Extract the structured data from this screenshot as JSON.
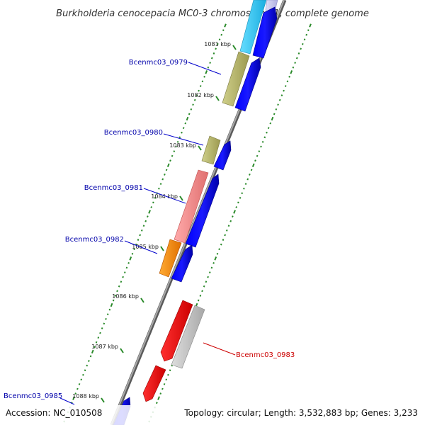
{
  "title": "Burkholderia cenocepacia MC0-3 chromosome 1, complete genome",
  "accession": "Accession: NC_010508",
  "summary": "Topology: circular; Length: 3,532,883 bp; Genes: 3,233",
  "ticks": [
    "1081 kbp",
    "1082 kbp",
    "1083 kbp",
    "1084 kbp",
    "1085 kbp",
    "1086 kbp",
    "1087 kbp",
    "1088 kbp"
  ],
  "gene_labels": [
    {
      "name": "Bcenmc03_0979",
      "color": "#0000aa"
    },
    {
      "name": "Bcenmc03_0980",
      "color": "#0000aa"
    },
    {
      "name": "Bcenmc03_0981",
      "color": "#0000aa"
    },
    {
      "name": "Bcenmc03_0982",
      "color": "#0000aa"
    },
    {
      "name": "Bcenmc03_0983",
      "color": "#cc0000"
    },
    {
      "name": "Bcenmc03_0985",
      "color": "#0000aa"
    }
  ],
  "colors": {
    "backbone": "#888888",
    "tick": "#2a8a2a",
    "forward_cds": "#0000ee",
    "cyan_gene": "#33ccee",
    "olive_gene": "#b5b46a",
    "pink_gene": "#f08a8a",
    "orange_gene": "#ff8800",
    "red_gene": "#ee0000",
    "grey_gene": "#bbbbbb",
    "lavender_gene": "#c8c8ee"
  }
}
